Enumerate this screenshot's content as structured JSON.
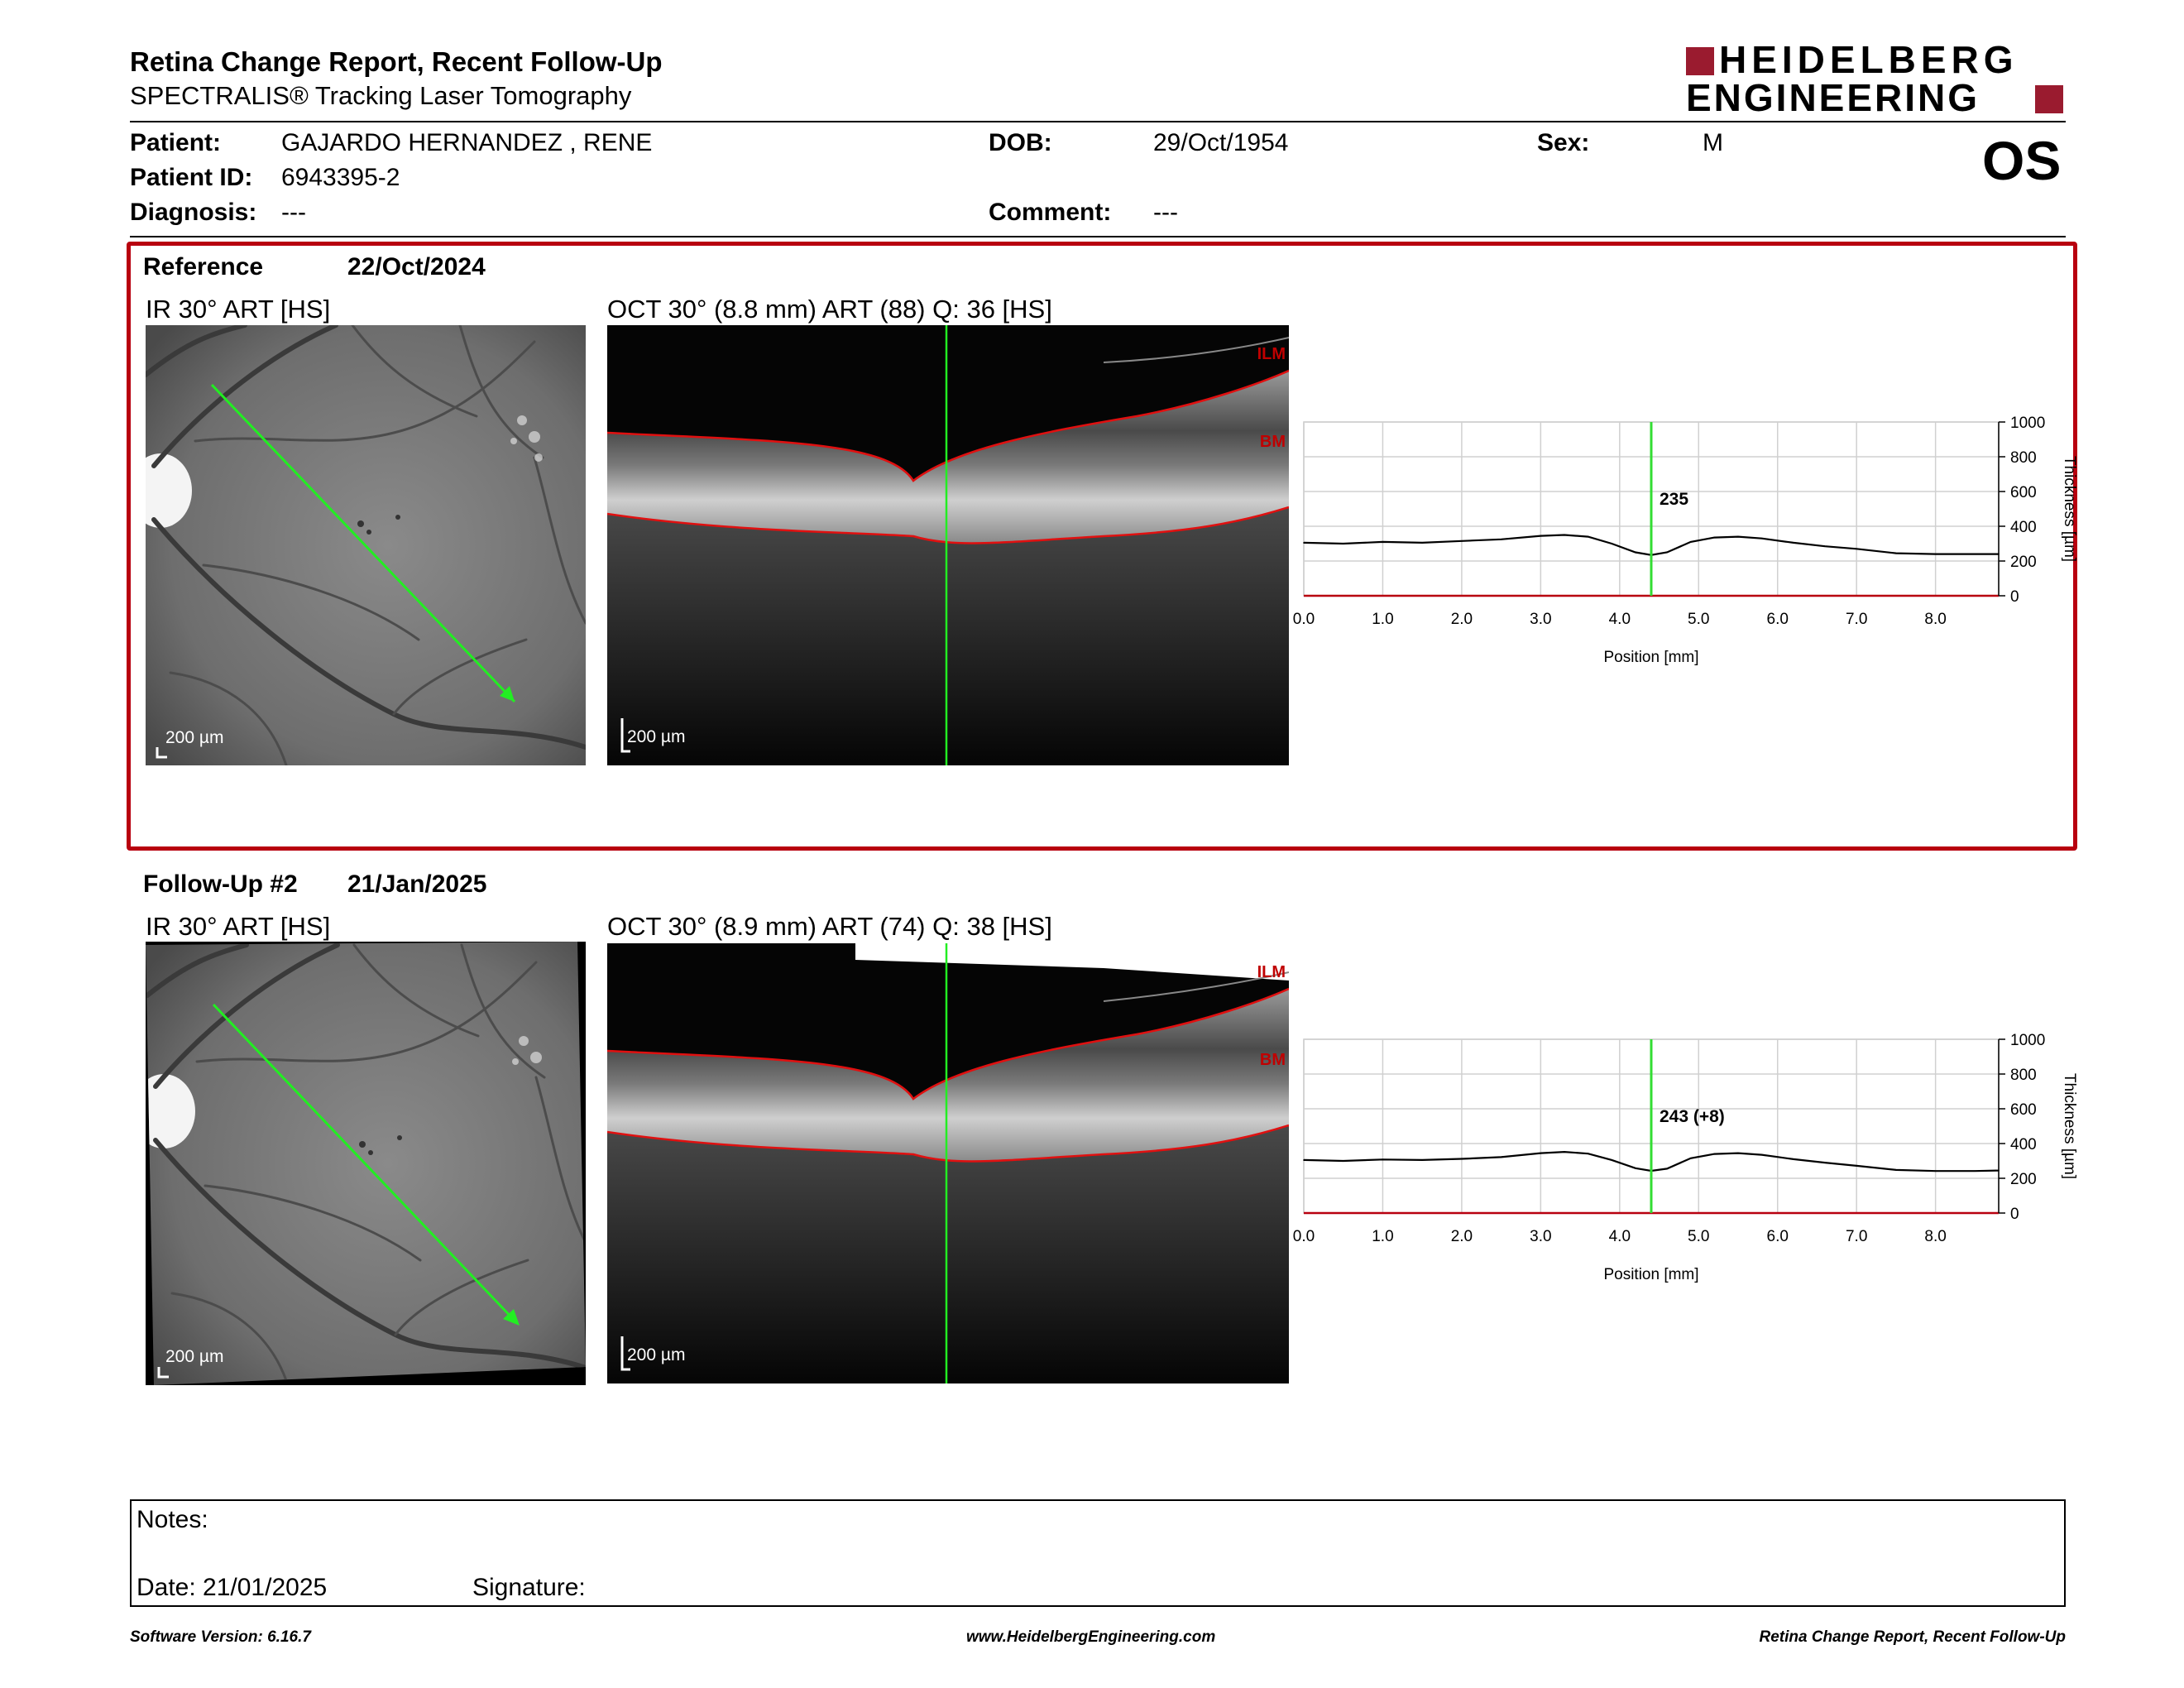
{
  "header": {
    "title": "Retina Change Report, Recent Follow-Up",
    "subtitle": "SPECTRALIS® Tracking Laser Tomography",
    "logo_line1": "HEIDELBERG",
    "logo_line2": "ENGINEERING",
    "eye": "OS"
  },
  "patient": {
    "patient_label": "Patient:",
    "patient_value": "GAJARDO HERNANDEZ , RENE",
    "id_label": "Patient ID:",
    "id_value": "6943395-2",
    "diagnosis_label": "Diagnosis:",
    "diagnosis_value": "---",
    "dob_label": "DOB:",
    "dob_value": "29/Oct/1954",
    "comment_label": "Comment:",
    "comment_value": "---",
    "sex_label": "Sex:",
    "sex_value": "M"
  },
  "exams": [
    {
      "label": "Reference",
      "date": "22/Oct/2024",
      "ir_title": "IR 30° ART [HS]",
      "oct_title": "OCT 30° (8.8 mm) ART (88) Q: 36 [HS]",
      "scale_label": "200 µm",
      "ilm_label": "ILM",
      "bm_label": "BM",
      "thickness_label": "235"
    },
    {
      "label": "Follow-Up #2",
      "date": "21/Jan/2025",
      "ir_title": "IR 30° ART [HS]",
      "oct_title": "OCT 30° (8.9 mm) ART (74) Q: 38 [HS]",
      "scale_label": "200 µm",
      "ilm_label": "ILM",
      "bm_label": "BM",
      "thickness_label": "243 (+8)"
    }
  ],
  "chart_data": [
    {
      "type": "line",
      "xlabel": "Position [mm]",
      "ylabel": "Thickness [µm]",
      "xlim": [
        0,
        8.8
      ],
      "ylim": [
        0,
        1000
      ],
      "x_ticks": [
        "0.0",
        "1.0",
        "2.0",
        "3.0",
        "4.0",
        "5.0",
        "6.0",
        "7.0",
        "8.0"
      ],
      "y_ticks": [
        "0",
        "200",
        "400",
        "600",
        "800",
        "1000"
      ],
      "marker_x": 4.4,
      "marker_label": "235",
      "series": [
        {
          "x": [
            0,
            0.5,
            1.0,
            1.5,
            2.0,
            2.5,
            3.0,
            3.3,
            3.6,
            3.9,
            4.2,
            4.4,
            4.6,
            4.9,
            5.2,
            5.5,
            5.8,
            6.2,
            6.6,
            7.0,
            7.5,
            8.0,
            8.5,
            8.8
          ],
          "values": [
            305,
            300,
            310,
            305,
            315,
            325,
            345,
            350,
            340,
            300,
            250,
            235,
            250,
            310,
            335,
            340,
            330,
            305,
            285,
            270,
            245,
            240,
            240,
            240
          ]
        }
      ]
    },
    {
      "type": "line",
      "xlabel": "Position [mm]",
      "ylabel": "Thickness [µm]",
      "xlim": [
        0,
        8.8
      ],
      "ylim": [
        0,
        1000
      ],
      "x_ticks": [
        "0.0",
        "1.0",
        "2.0",
        "3.0",
        "4.0",
        "5.0",
        "6.0",
        "7.0",
        "8.0"
      ],
      "y_ticks": [
        "0",
        "200",
        "400",
        "600",
        "800",
        "1000"
      ],
      "marker_x": 4.4,
      "marker_label": "243 (+8)",
      "series": [
        {
          "x": [
            0,
            0.5,
            1.0,
            1.5,
            2.0,
            2.5,
            3.0,
            3.3,
            3.6,
            3.9,
            4.2,
            4.4,
            4.6,
            4.9,
            5.2,
            5.5,
            5.8,
            6.2,
            6.6,
            7.0,
            7.5,
            8.0,
            8.5,
            8.8
          ],
          "values": [
            305,
            300,
            308,
            305,
            312,
            322,
            345,
            352,
            342,
            305,
            258,
            243,
            255,
            315,
            340,
            345,
            335,
            310,
            290,
            272,
            248,
            242,
            242,
            245
          ]
        }
      ]
    }
  ],
  "notes": {
    "notes_label": "Notes:",
    "date_label": "Date: 21/01/2025",
    "signature_label": "Signature:"
  },
  "footer": {
    "software": "Software Version: 6.16.7",
    "website": "www.HeidelbergEngineering.com",
    "report": "Retina Change Report, Recent Follow-Up"
  },
  "colors": {
    "accent_red": "#b8000f",
    "logo_red": "#9a1b2f",
    "scan_green": "#22ee22",
    "marker_green": "#33dd33"
  }
}
